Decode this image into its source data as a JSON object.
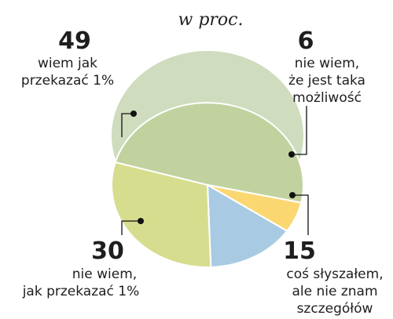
{
  "chart_data": {
    "type": "pie",
    "title": "w proc.",
    "slices": [
      {
        "value": 49,
        "label_lines": [
          "wiem jak",
          "przekazać 1%"
        ],
        "color": "#c1d29f"
      },
      {
        "value": 6,
        "label_lines": [
          "nie wiem,",
          "że jest taka",
          "możliwość"
        ],
        "color": "#fbd772"
      },
      {
        "value": 15,
        "label_lines": [
          "coś słyszałem,",
          "ale nie znam",
          "szczegółów"
        ],
        "color": "#a8cbe3"
      },
      {
        "value": 30,
        "label_lines": [
          "nie wiem,",
          "jak przekazać 1%"
        ],
        "color": "#d7dd8e"
      }
    ],
    "shadow_color": "#cfdcbd",
    "edge_color": "#ffffff"
  }
}
